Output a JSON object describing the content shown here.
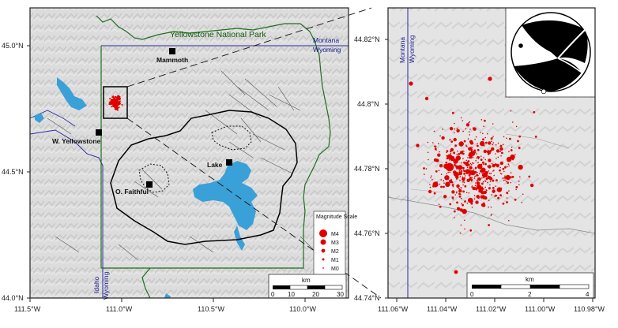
{
  "left_map": {
    "park_label": "Yellowstone National Park",
    "states": {
      "montana": "Montana",
      "wyoming": "Wyoming",
      "idaho": "Idaho",
      "wyoming_vertical": "Wyoming"
    },
    "towns": {
      "mammoth": "Mammoth",
      "w_yellowstone": "W. Yellowstone",
      "lake": "Lake",
      "o_faithful": "O. Faithful"
    },
    "y_ticks": [
      "45.0°N",
      "44.5°N",
      "44.0°N"
    ],
    "x_ticks": [
      "111.5°W",
      "111.0°W",
      "110.5°W",
      "110.0°W"
    ],
    "scale": {
      "unit": "km",
      "ticks": [
        "0",
        "10",
        "20",
        "30"
      ]
    },
    "legend": {
      "title": "Magnitude Scale",
      "items": [
        "M4",
        "M3",
        "M2",
        "M1",
        "M0"
      ]
    }
  },
  "right_map": {
    "states": {
      "montana": "Montana",
      "wyoming": "Wyoming"
    },
    "y_ticks": [
      "44.82°N",
      "44.8°N",
      "44.78°N",
      "44.76°N",
      "44.74°N"
    ],
    "x_ticks": [
      "111.06°W",
      "111.04°W",
      "111.02°W",
      "111.00°W",
      "110.98°W"
    ],
    "scale": {
      "unit": "km",
      "ticks": [
        "0",
        "2",
        "4"
      ]
    }
  },
  "colors": {
    "quake": "#e00000",
    "lake": "#3aa0d8",
    "park_boundary": "#1f6e1f",
    "state_border": "#2a2aa0",
    "caldera": "#000000"
  }
}
